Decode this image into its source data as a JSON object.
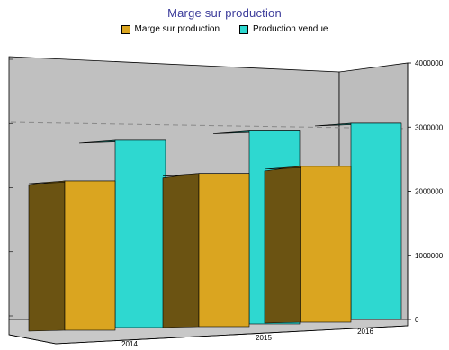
{
  "chart_data": {
    "type": "bar",
    "title": "Marge sur production",
    "categories": [
      "2014",
      "2015",
      "2016"
    ],
    "series": [
      {
        "name": "Marge sur production",
        "values": [
          2330000,
          2390000,
          2430000
        ],
        "color": "#daa520",
        "side_color": "#6b5312"
      },
      {
        "name": "Production vendue",
        "values": [
          2920000,
          3010000,
          3060000
        ],
        "color": "#2ed8d0",
        "side_color": "#1a716a"
      }
    ],
    "y_ticks": [
      "0",
      "1000000",
      "2000000",
      "3000000",
      "4000000"
    ],
    "ylim": [
      0,
      4000000
    ],
    "reference_line": 3000000,
    "legend_position": "top",
    "grid": false,
    "three_d": true
  }
}
